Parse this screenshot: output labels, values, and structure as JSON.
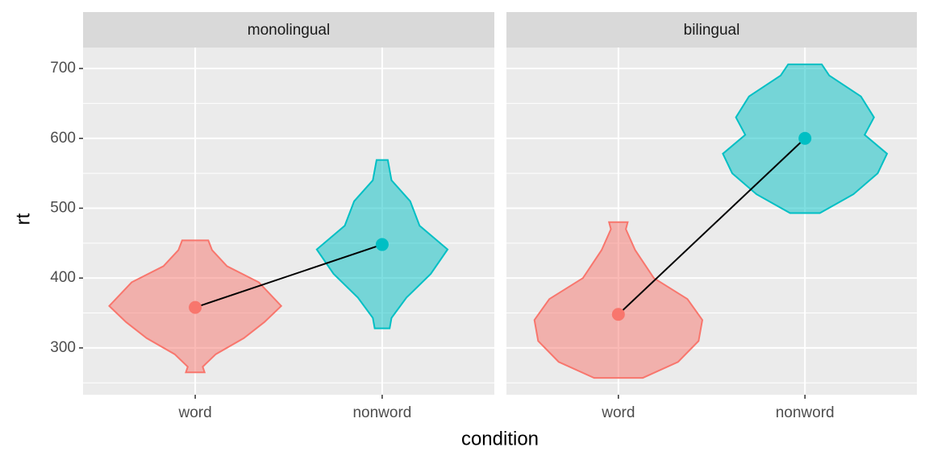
{
  "chart_data": {
    "type": "violin",
    "xlabel": "condition",
    "ylabel": "rt",
    "ylim": [
      233,
      730
    ],
    "yticks": [
      300,
      400,
      500,
      600,
      700
    ],
    "minor_yticks": [
      250,
      350,
      450,
      550,
      650
    ],
    "categories": [
      "word",
      "nonword"
    ],
    "colors": [
      "#F8766D",
      "#00BFC4"
    ],
    "panels": [
      {
        "title": "monolingual",
        "means": [
          358,
          448
        ],
        "violins": [
          {
            "y": [
              265,
              273,
              291,
              314,
              337,
              360,
              394,
              417,
              440,
              454
            ],
            "w": [
              0.05,
              0.04,
              0.11,
              0.26,
              0.37,
              0.46,
              0.34,
              0.17,
              0.09,
              0.07
            ]
          },
          {
            "y": [
              328,
              343,
              372,
              406,
              441,
              475,
              510,
              540,
              569
            ],
            "w": [
              0.04,
              0.05,
              0.13,
              0.26,
              0.35,
              0.2,
              0.15,
              0.05,
              0.03
            ]
          }
        ]
      },
      {
        "title": "bilingual",
        "means": [
          348,
          600
        ],
        "violins": [
          {
            "y": [
              257,
              280,
              310,
              340,
              370,
              400,
              440,
              470,
              480
            ],
            "w": [
              0.13,
              0.32,
              0.43,
              0.45,
              0.37,
              0.19,
              0.09,
              0.04,
              0.05
            ]
          },
          {
            "y": [
              493,
              520,
              550,
              578,
              605,
              630,
              660,
              690,
              706
            ],
            "w": [
              0.08,
              0.26,
              0.39,
              0.44,
              0.32,
              0.37,
              0.3,
              0.13,
              0.09
            ]
          }
        ]
      }
    ]
  }
}
